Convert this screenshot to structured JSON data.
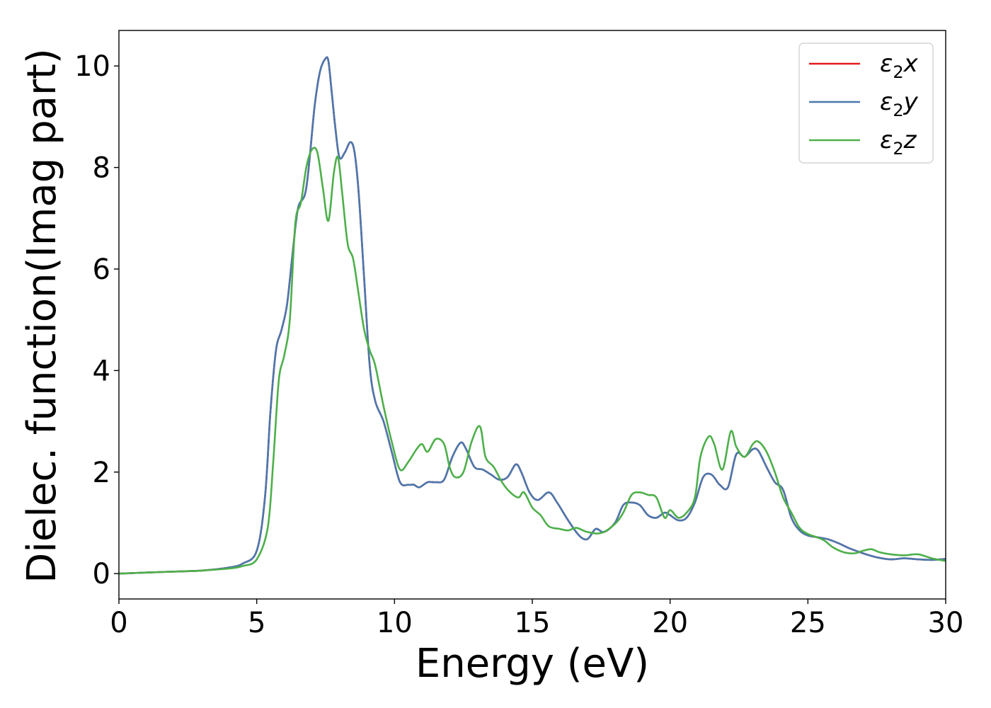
{
  "chart_data": {
    "type": "line",
    "xlabel": "Energy (eV)",
    "ylabel": "Dielec. function(Imag part)",
    "xlim": [
      0,
      30
    ],
    "ylim": [
      -0.5,
      10.7
    ],
    "xticks": [
      0,
      5,
      10,
      15,
      20,
      25,
      30
    ],
    "xtick_labels": [
      "0",
      "5",
      "10",
      "15",
      "20",
      "25",
      "30"
    ],
    "yticks": [
      0,
      2,
      4,
      6,
      8,
      10
    ],
    "ytick_labels": [
      "0",
      "2",
      "4",
      "6",
      "8",
      "10"
    ],
    "grid": false,
    "legend_position": "top-right",
    "series": [
      {
        "name": "ε2x",
        "legend": {
          "base": "ε",
          "sub": "2",
          "var": "x"
        },
        "color": "#e41a1c",
        "x": [
          0,
          1,
          2,
          3,
          4,
          4.5,
          5,
          5.3,
          5.5,
          5.7,
          5.9,
          6.1,
          6.3,
          6.5,
          6.8,
          7.1,
          7.3,
          7.5,
          7.6,
          7.7,
          7.85,
          8.0,
          8.2,
          8.4,
          8.55,
          8.7,
          8.9,
          9.1,
          9.3,
          9.6,
          9.9,
          10.2,
          10.5,
          10.7,
          10.9,
          11.2,
          11.5,
          11.8,
          12.1,
          12.4,
          12.6,
          12.9,
          13.2,
          13.5,
          13.8,
          14.1,
          14.4,
          14.6,
          14.9,
          15.2,
          15.6,
          15.9,
          16.3,
          16.7,
          17.0,
          17.3,
          17.6,
          18.0,
          18.3,
          18.6,
          18.9,
          19.2,
          19.5,
          19.8,
          20.0,
          20.3,
          20.6,
          20.9,
          21.2,
          21.5,
          21.8,
          22.1,
          22.4,
          22.7,
          23.0,
          23.2,
          23.5,
          23.8,
          24.1,
          24.4,
          24.7,
          25.0,
          25.3,
          25.7,
          26.1,
          26.5,
          27.0,
          27.5,
          28.0,
          28.5,
          29.0,
          29.5,
          30.0
        ],
        "y": [
          0.0,
          0.02,
          0.04,
          0.06,
          0.12,
          0.2,
          0.45,
          1.5,
          3.2,
          4.4,
          4.8,
          5.3,
          6.3,
          7.2,
          7.6,
          9.2,
          9.9,
          10.15,
          10.1,
          9.6,
          8.8,
          8.2,
          8.3,
          8.5,
          8.3,
          7.5,
          5.8,
          4.1,
          3.4,
          3.0,
          2.4,
          1.8,
          1.75,
          1.75,
          1.7,
          1.8,
          1.8,
          1.85,
          2.3,
          2.58,
          2.45,
          2.1,
          2.05,
          1.95,
          1.85,
          1.9,
          2.15,
          2.0,
          1.6,
          1.45,
          1.6,
          1.4,
          1.05,
          0.75,
          0.68,
          0.88,
          0.82,
          1.0,
          1.35,
          1.4,
          1.35,
          1.15,
          1.1,
          1.2,
          1.15,
          1.05,
          1.1,
          1.4,
          1.9,
          1.95,
          1.75,
          1.7,
          2.35,
          2.3,
          2.45,
          2.42,
          2.1,
          1.8,
          1.65,
          1.1,
          0.85,
          0.75,
          0.72,
          0.68,
          0.6,
          0.5,
          0.4,
          0.32,
          0.28,
          0.3,
          0.28,
          0.27,
          0.29
        ]
      },
      {
        "name": "ε2y",
        "legend": {
          "base": "ε",
          "sub": "2",
          "var": "y"
        },
        "color": "#4a78ae",
        "x": [
          0,
          1,
          2,
          3,
          4,
          4.5,
          5,
          5.3,
          5.5,
          5.7,
          5.9,
          6.1,
          6.3,
          6.5,
          6.8,
          7.1,
          7.3,
          7.5,
          7.6,
          7.7,
          7.85,
          8.0,
          8.2,
          8.4,
          8.55,
          8.7,
          8.9,
          9.1,
          9.3,
          9.6,
          9.9,
          10.2,
          10.5,
          10.7,
          10.9,
          11.2,
          11.5,
          11.8,
          12.1,
          12.4,
          12.6,
          12.9,
          13.2,
          13.5,
          13.8,
          14.1,
          14.4,
          14.6,
          14.9,
          15.2,
          15.6,
          15.9,
          16.3,
          16.7,
          17.0,
          17.3,
          17.6,
          18.0,
          18.3,
          18.6,
          18.9,
          19.2,
          19.5,
          19.8,
          20.0,
          20.3,
          20.6,
          20.9,
          21.2,
          21.5,
          21.8,
          22.1,
          22.4,
          22.7,
          23.0,
          23.2,
          23.5,
          23.8,
          24.1,
          24.4,
          24.7,
          25.0,
          25.3,
          25.7,
          26.1,
          26.5,
          27.0,
          27.5,
          28.0,
          28.5,
          29.0,
          29.5,
          30.0
        ],
        "y": [
          0.0,
          0.02,
          0.04,
          0.06,
          0.12,
          0.2,
          0.45,
          1.5,
          3.2,
          4.4,
          4.8,
          5.3,
          6.3,
          7.2,
          7.6,
          9.2,
          9.9,
          10.15,
          10.1,
          9.6,
          8.8,
          8.2,
          8.3,
          8.5,
          8.3,
          7.5,
          5.8,
          4.1,
          3.4,
          3.0,
          2.4,
          1.8,
          1.75,
          1.75,
          1.7,
          1.8,
          1.8,
          1.85,
          2.3,
          2.58,
          2.45,
          2.1,
          2.05,
          1.95,
          1.85,
          1.9,
          2.15,
          2.0,
          1.6,
          1.45,
          1.6,
          1.4,
          1.05,
          0.75,
          0.68,
          0.88,
          0.82,
          1.0,
          1.35,
          1.4,
          1.35,
          1.15,
          1.1,
          1.2,
          1.15,
          1.05,
          1.1,
          1.4,
          1.9,
          1.95,
          1.75,
          1.7,
          2.35,
          2.3,
          2.45,
          2.42,
          2.1,
          1.8,
          1.65,
          1.1,
          0.85,
          0.75,
          0.72,
          0.68,
          0.6,
          0.5,
          0.4,
          0.32,
          0.28,
          0.3,
          0.28,
          0.27,
          0.29
        ]
      },
      {
        "name": "ε2z",
        "legend": {
          "base": "ε",
          "sub": "2",
          "var": "z"
        },
        "color": "#4daf4a",
        "x": [
          0,
          1,
          2,
          3,
          4,
          4.5,
          5,
          5.4,
          5.6,
          5.8,
          6.0,
          6.2,
          6.4,
          6.6,
          6.8,
          7.0,
          7.2,
          7.4,
          7.6,
          7.8,
          7.95,
          8.1,
          8.3,
          8.5,
          8.7,
          8.9,
          9.1,
          9.3,
          9.6,
          9.9,
          10.2,
          10.5,
          10.8,
          11.0,
          11.2,
          11.5,
          11.8,
          12.0,
          12.2,
          12.5,
          12.8,
          13.1,
          13.3,
          13.6,
          13.9,
          14.2,
          14.5,
          14.7,
          15.0,
          15.3,
          15.6,
          16.0,
          16.3,
          16.6,
          17.0,
          17.5,
          18.0,
          18.3,
          18.6,
          18.9,
          19.2,
          19.5,
          19.8,
          20.0,
          20.3,
          20.6,
          20.9,
          21.1,
          21.4,
          21.6,
          21.9,
          22.2,
          22.4,
          22.7,
          23.0,
          23.2,
          23.5,
          23.8,
          24.1,
          24.4,
          24.7,
          25.0,
          25.3,
          25.6,
          25.9,
          26.3,
          26.7,
          27.0,
          27.3,
          27.6,
          28.0,
          28.5,
          29.0,
          29.5,
          30.0
        ],
        "y": [
          0.0,
          0.02,
          0.04,
          0.06,
          0.1,
          0.15,
          0.28,
          0.9,
          2.2,
          3.8,
          4.3,
          5.0,
          6.9,
          7.3,
          8.0,
          8.35,
          8.3,
          7.6,
          6.95,
          7.9,
          8.2,
          7.5,
          6.5,
          6.2,
          5.5,
          4.8,
          4.4,
          4.1,
          3.3,
          2.6,
          2.05,
          2.2,
          2.45,
          2.55,
          2.4,
          2.65,
          2.55,
          2.1,
          1.9,
          2.0,
          2.6,
          2.9,
          2.3,
          2.1,
          1.8,
          1.6,
          1.5,
          1.6,
          1.3,
          1.15,
          0.93,
          0.88,
          0.85,
          0.9,
          0.82,
          0.8,
          0.98,
          1.2,
          1.55,
          1.6,
          1.55,
          1.5,
          1.1,
          1.25,
          1.1,
          1.2,
          1.5,
          2.3,
          2.7,
          2.55,
          2.05,
          2.8,
          2.5,
          2.3,
          2.55,
          2.6,
          2.4,
          2.0,
          1.5,
          1.2,
          0.9,
          0.78,
          0.72,
          0.65,
          0.52,
          0.42,
          0.4,
          0.45,
          0.48,
          0.42,
          0.38,
          0.36,
          0.38,
          0.3,
          0.25
        ]
      }
    ]
  }
}
